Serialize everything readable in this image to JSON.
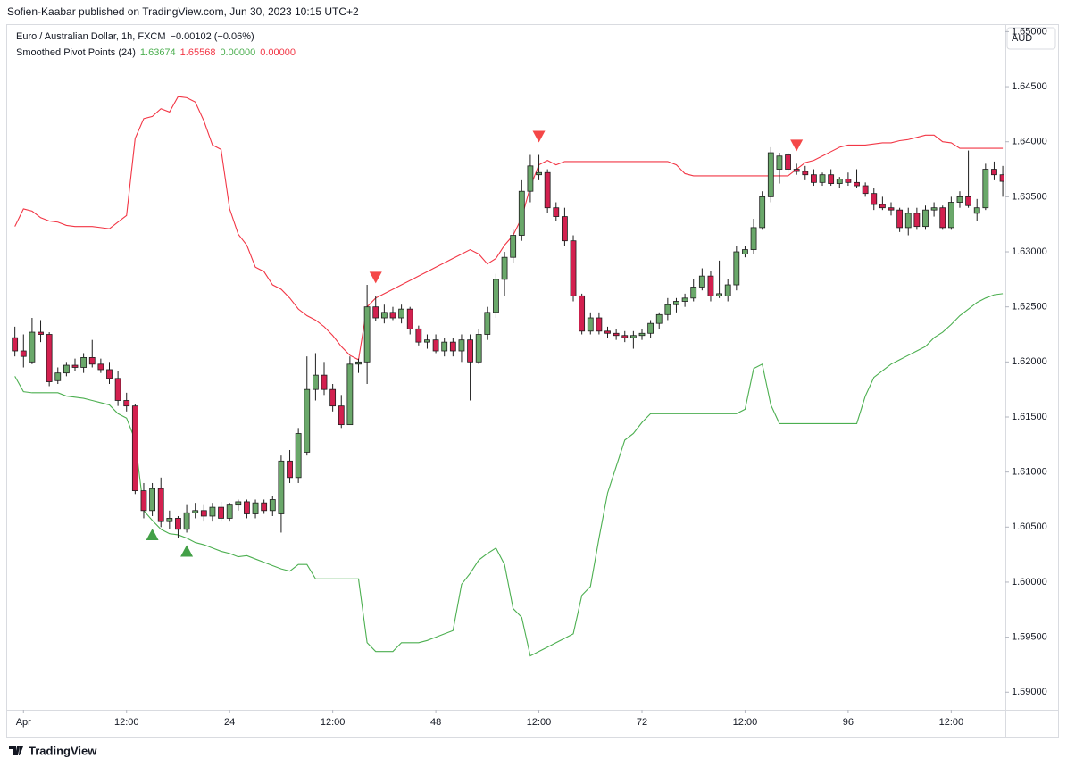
{
  "header": {
    "publisher": "Sofien-Kaabar published on TradingView.com, Jun 30, 2023 10:15 UTC+2"
  },
  "footer": {
    "brand": "TradingView"
  },
  "chart_data": {
    "type": "candlestick",
    "title": "Euro / Australian Dollar, 1h, FXCM",
    "change_label": "−0.00102 (−0.06%)",
    "currency_label": "AUD",
    "indicator_name": "Smoothed Pivot Points (24)",
    "indicator_values": [
      "1.63674",
      "1.65568",
      "0.00000",
      "0.00000"
    ],
    "indicator_value_colors": [
      "#4caf50",
      "#f23645",
      "#4caf50",
      "#f23645"
    ],
    "up_color": "#6aa86a",
    "down_color": "#d3204f",
    "x": [
      -1,
      0,
      1,
      2,
      3,
      4,
      5,
      6,
      7,
      8,
      9,
      10,
      11,
      12,
      13,
      14,
      15,
      16,
      17,
      18,
      19,
      20,
      21,
      22,
      23,
      24,
      25,
      26,
      27,
      28,
      29,
      30,
      31,
      32,
      33,
      34,
      35,
      36,
      37,
      38,
      39,
      40,
      41,
      42,
      43,
      44,
      45,
      46,
      47,
      48,
      49,
      50,
      51,
      52,
      53,
      54,
      55,
      56,
      57,
      58,
      59,
      60,
      61,
      62,
      63,
      64,
      65,
      66,
      67,
      68,
      69,
      70,
      71,
      72,
      73,
      74,
      75,
      76,
      77,
      78,
      79,
      80,
      81,
      82,
      83,
      84,
      85,
      86,
      87,
      88,
      89,
      90,
      91,
      92,
      93,
      94,
      95,
      96,
      97,
      98,
      99,
      100,
      101,
      102,
      103,
      104,
      105,
      106,
      107,
      108,
      109,
      110,
      111,
      112,
      113,
      114
    ],
    "xlim": [
      -1.9,
      114.2
    ],
    "xticks": [
      {
        "value": 0,
        "label": "Apr"
      },
      {
        "value": 12,
        "label": "12:00"
      },
      24,
      {
        "value": 36,
        "label": "12:00"
      },
      48,
      {
        "value": 60,
        "label": "12:00"
      },
      72,
      {
        "value": 84,
        "label": "12:00"
      },
      96,
      {
        "value": 108,
        "label": "12:00"
      }
    ],
    "ylim": [
      1.5884,
      1.6506
    ],
    "yticks": [
      {
        "value": 1.59,
        "label": "1.59000"
      },
      {
        "value": 1.595,
        "label": "1.59500"
      },
      {
        "value": 1.6,
        "label": "1.60000"
      },
      {
        "value": 1.605,
        "label": "1.60500"
      },
      {
        "value": 1.61,
        "label": "1.61000"
      },
      {
        "value": 1.615,
        "label": "1.61500"
      },
      {
        "value": 1.62,
        "label": "1.62000"
      },
      {
        "value": 1.625,
        "label": "1.62500"
      },
      {
        "value": 1.63,
        "label": "1.63000"
      },
      {
        "value": 1.635,
        "label": "1.63500"
      },
      {
        "value": 1.64,
        "label": "1.64000"
      },
      {
        "value": 1.645,
        "label": "1.64500"
      },
      {
        "value": 1.65,
        "label": "1.65000"
      }
    ],
    "open": [
      1.6222,
      1.621,
      1.62,
      1.6227,
      1.6225,
      1.6183,
      1.619,
      1.6197,
      1.6195,
      1.6204,
      1.6198,
      1.6193,
      1.6185,
      1.6165,
      1.616,
      1.6083,
      1.6065,
      1.6085,
      1.6055,
      1.6058,
      1.6048,
      1.6063,
      1.6065,
      1.606,
      1.6068,
      1.6058,
      1.607,
      1.6073,
      1.6062,
      1.6072,
      1.6065,
      1.6062,
      1.611,
      1.6095,
      1.6118,
      1.6175,
      1.6188,
      1.6175,
      1.616,
      1.6143,
      1.6198,
      1.62,
      1.625,
      1.624,
      1.6245,
      1.624,
      1.6248,
      1.623,
      1.6218,
      1.622,
      1.621,
      1.6218,
      1.621,
      1.622,
      1.62,
      1.6225,
      1.6245,
      1.6275,
      1.6295,
      1.6315,
      1.6355,
      1.637,
      1.6372,
      1.634,
      1.6332,
      1.631,
      1.626,
      1.6228,
      1.624,
      1.6228,
      1.6226,
      1.6224,
      1.6222,
      1.6224,
      1.6226,
      1.6235,
      1.6243,
      1.6252,
      1.6255,
      1.6258,
      1.6268,
      1.6278,
      1.626,
      1.626,
      1.627,
      1.6298,
      1.6302,
      1.6322,
      1.635,
      1.6375,
      1.6388,
      1.6375,
      1.6373,
      1.637,
      1.6363,
      1.637,
      1.6362,
      1.6366,
      1.6363,
      1.636,
      1.6353,
      1.6343,
      1.634,
      1.6338,
      1.6322,
      1.6335,
      1.6323,
      1.6338,
      1.634,
      1.6322,
      1.6345,
      1.635,
      1.6335,
      1.634,
      1.6375,
      1.637
    ],
    "high": [
      1.6232,
      1.6225,
      1.624,
      1.6238,
      1.6227,
      1.6195,
      1.62,
      1.6203,
      1.6208,
      1.622,
      1.6203,
      1.62,
      1.6192,
      1.6172,
      1.6162,
      1.609,
      1.609,
      1.6095,
      1.6065,
      1.606,
      1.607,
      1.6072,
      1.607,
      1.6072,
      1.6073,
      1.6072,
      1.6075,
      1.6075,
      1.6075,
      1.6075,
      1.6078,
      1.6115,
      1.612,
      1.614,
      1.6205,
      1.6208,
      1.62,
      1.618,
      1.617,
      1.6205,
      1.6203,
      1.627,
      1.626,
      1.6252,
      1.625,
      1.6252,
      1.625,
      1.6233,
      1.6225,
      1.6225,
      1.6222,
      1.6222,
      1.6225,
      1.6225,
      1.623,
      1.625,
      1.628,
      1.63,
      1.632,
      1.6365,
      1.6388,
      1.6388,
      1.6375,
      1.6345,
      1.634,
      1.6315,
      1.6262,
      1.6245,
      1.6245,
      1.6232,
      1.623,
      1.6228,
      1.6228,
      1.623,
      1.6238,
      1.6245,
      1.6258,
      1.6258,
      1.6262,
      1.6275,
      1.6285,
      1.6283,
      1.6292,
      1.6275,
      1.6305,
      1.6305,
      1.633,
      1.6355,
      1.6395,
      1.639,
      1.639,
      1.638,
      1.6378,
      1.6375,
      1.6372,
      1.6375,
      1.6368,
      1.6372,
      1.6375,
      1.6363,
      1.6358,
      1.635,
      1.6345,
      1.634,
      1.634,
      1.634,
      1.6342,
      1.6345,
      1.6342,
      1.635,
      1.6355,
      1.6392,
      1.6348,
      1.638,
      1.6382,
      1.6378
    ],
    "low": [
      1.6205,
      1.6195,
      1.6198,
      1.6218,
      1.6178,
      1.618,
      1.6187,
      1.6192,
      1.619,
      1.6195,
      1.619,
      1.618,
      1.616,
      1.6155,
      1.608,
      1.6058,
      1.606,
      1.605,
      1.6048,
      1.604,
      1.6045,
      1.6058,
      1.6055,
      1.6055,
      1.6055,
      1.6055,
      1.6065,
      1.6058,
      1.6058,
      1.6062,
      1.606,
      1.6045,
      1.609,
      1.609,
      1.6115,
      1.6165,
      1.617,
      1.6155,
      1.614,
      1.6143,
      1.619,
      1.618,
      1.6237,
      1.6235,
      1.6238,
      1.6235,
      1.6225,
      1.6215,
      1.6212,
      1.6208,
      1.6205,
      1.6205,
      1.62,
      1.6165,
      1.6198,
      1.622,
      1.624,
      1.626,
      1.629,
      1.631,
      1.6345,
      1.6365,
      1.6335,
      1.6328,
      1.6305,
      1.6255,
      1.6225,
      1.6225,
      1.6225,
      1.6222,
      1.622,
      1.6218,
      1.6212,
      1.622,
      1.6222,
      1.623,
      1.6238,
      1.6245,
      1.625,
      1.6255,
      1.6265,
      1.6255,
      1.6258,
      1.6255,
      1.6265,
      1.6295,
      1.6298,
      1.632,
      1.6345,
      1.6362,
      1.6372,
      1.637,
      1.6365,
      1.636,
      1.636,
      1.636,
      1.6358,
      1.636,
      1.6358,
      1.635,
      1.6338,
      1.6338,
      1.6333,
      1.6318,
      1.6315,
      1.632,
      1.632,
      1.6332,
      1.632,
      1.632,
      1.634,
      1.634,
      1.6328,
      1.6338,
      1.6365,
      1.635
    ],
    "close": [
      1.621,
      1.6205,
      1.6227,
      1.6225,
      1.6182,
      1.619,
      1.6197,
      1.6195,
      1.6204,
      1.6198,
      1.6193,
      1.6185,
      1.6165,
      1.616,
      1.6083,
      1.6065,
      1.6085,
      1.6055,
      1.6058,
      1.6048,
      1.6063,
      1.6065,
      1.606,
      1.6068,
      1.6058,
      1.607,
      1.6073,
      1.6062,
      1.6072,
      1.6065,
      1.6075,
      1.611,
      1.6095,
      1.6135,
      1.6175,
      1.6188,
      1.6175,
      1.616,
      1.6143,
      1.6198,
      1.62,
      1.625,
      1.624,
      1.6245,
      1.624,
      1.6248,
      1.623,
      1.6218,
      1.622,
      1.621,
      1.6218,
      1.621,
      1.622,
      1.62,
      1.6225,
      1.6245,
      1.6275,
      1.6295,
      1.6315,
      1.6355,
      1.6378,
      1.6372,
      1.634,
      1.6332,
      1.631,
      1.626,
      1.6228,
      1.624,
      1.6228,
      1.6226,
      1.6224,
      1.6222,
      1.6224,
      1.6226,
      1.6235,
      1.6243,
      1.6252,
      1.6255,
      1.6258,
      1.6268,
      1.6278,
      1.626,
      1.6262,
      1.627,
      1.63,
      1.6302,
      1.6322,
      1.635,
      1.639,
      1.6387,
      1.6375,
      1.6373,
      1.637,
      1.6363,
      1.637,
      1.6362,
      1.6366,
      1.6363,
      1.636,
      1.6353,
      1.6343,
      1.634,
      1.6338,
      1.6322,
      1.6335,
      1.6323,
      1.6338,
      1.634,
      1.6322,
      1.6345,
      1.635,
      1.6342,
      1.634,
      1.6375,
      1.637,
      1.6364
    ],
    "series": [
      {
        "color": "#4caf50",
        "values": [
          1.6187,
          1.6173,
          1.6172,
          1.6172,
          1.6172,
          1.6172,
          1.6169,
          1.6168,
          1.6167,
          1.6165,
          1.6163,
          1.6161,
          1.6153,
          1.6149,
          1.6129,
          1.6065,
          1.6056,
          1.6048,
          1.6044,
          1.6043,
          1.604,
          1.6036,
          1.6034,
          1.6031,
          1.6028,
          1.6026,
          1.6023,
          1.6024,
          1.6021,
          1.6018,
          1.6015,
          1.6012,
          1.601,
          1.6016,
          1.6016,
          1.6003,
          1.6003,
          1.6003,
          1.6003,
          1.6003,
          1.6003,
          1.5945,
          1.5937,
          1.5937,
          1.5937,
          1.5945,
          1.5945,
          1.5945,
          1.5947,
          1.595,
          1.5953,
          1.5956,
          1.5998,
          1.6008,
          1.602,
          1.6026,
          1.6031,
          1.6016,
          1.5976,
          1.5968,
          1.5933,
          1.5937,
          1.5941,
          1.5945,
          1.5949,
          1.5953,
          1.5988,
          1.5996,
          1.604,
          1.6081,
          1.6105,
          1.6129,
          1.6135,
          1.6145,
          1.6153,
          1.6153,
          1.6153,
          1.6153,
          1.6153,
          1.6153,
          1.6153,
          1.6153,
          1.6153,
          1.6153,
          1.6153,
          1.6157,
          1.6194,
          1.6198,
          1.6161,
          1.6144,
          1.6144,
          1.6144,
          1.6144,
          1.6144,
          1.6144,
          1.6144,
          1.6144,
          1.6144,
          1.6144,
          1.6169,
          1.6186,
          1.6192,
          1.6198,
          1.6202,
          1.6206,
          1.621,
          1.6214,
          1.6222,
          1.6227,
          1.6234,
          1.6242,
          1.6248,
          1.6254,
          1.6258,
          1.6261,
          1.6262
        ]
      },
      {
        "color": "#f23645",
        "values": [
          1.6323,
          1.6339,
          1.6337,
          1.6331,
          1.6328,
          1.6327,
          1.6324,
          1.6323,
          1.6323,
          1.6323,
          1.6322,
          1.6321,
          1.6327,
          1.6333,
          1.6403,
          1.6421,
          1.6423,
          1.643,
          1.6427,
          1.6441,
          1.644,
          1.6436,
          1.6419,
          1.6397,
          1.6393,
          1.6339,
          1.6316,
          1.6306,
          1.6286,
          1.6282,
          1.627,
          1.6266,
          1.6258,
          1.6248,
          1.6242,
          1.6238,
          1.6232,
          1.6224,
          1.6214,
          1.6206,
          1.6202,
          1.625,
          1.6258,
          1.6262,
          1.6266,
          1.627,
          1.6274,
          1.6278,
          1.6282,
          1.6286,
          1.629,
          1.6294,
          1.6298,
          1.6302,
          1.6298,
          1.6289,
          1.6294,
          1.6306,
          1.6315,
          1.6331,
          1.6359,
          1.6379,
          1.6383,
          1.6379,
          1.6382,
          1.6382,
          1.6382,
          1.6382,
          1.6382,
          1.6382,
          1.6382,
          1.6382,
          1.6382,
          1.6382,
          1.6382,
          1.6382,
          1.6382,
          1.6379,
          1.6371,
          1.6369,
          1.6369,
          1.6369,
          1.6369,
          1.6369,
          1.6369,
          1.6369,
          1.6369,
          1.6369,
          1.6369,
          1.6369,
          1.6369,
          1.6375,
          1.6381,
          1.6383,
          1.6387,
          1.6391,
          1.6395,
          1.6397,
          1.6397,
          1.6397,
          1.6398,
          1.6399,
          1.6399,
          1.6401,
          1.6402,
          1.6404,
          1.6406,
          1.6406,
          1.64,
          1.6399,
          1.6394,
          1.6394,
          1.6394,
          1.6394,
          1.6394,
          1.6394
        ]
      }
    ],
    "signals": {
      "buy": {
        "color": "#43a047",
        "x": [
          15,
          19
        ]
      },
      "sell": {
        "color": "#f44747",
        "x": [
          41,
          60,
          90
        ]
      }
    }
  }
}
